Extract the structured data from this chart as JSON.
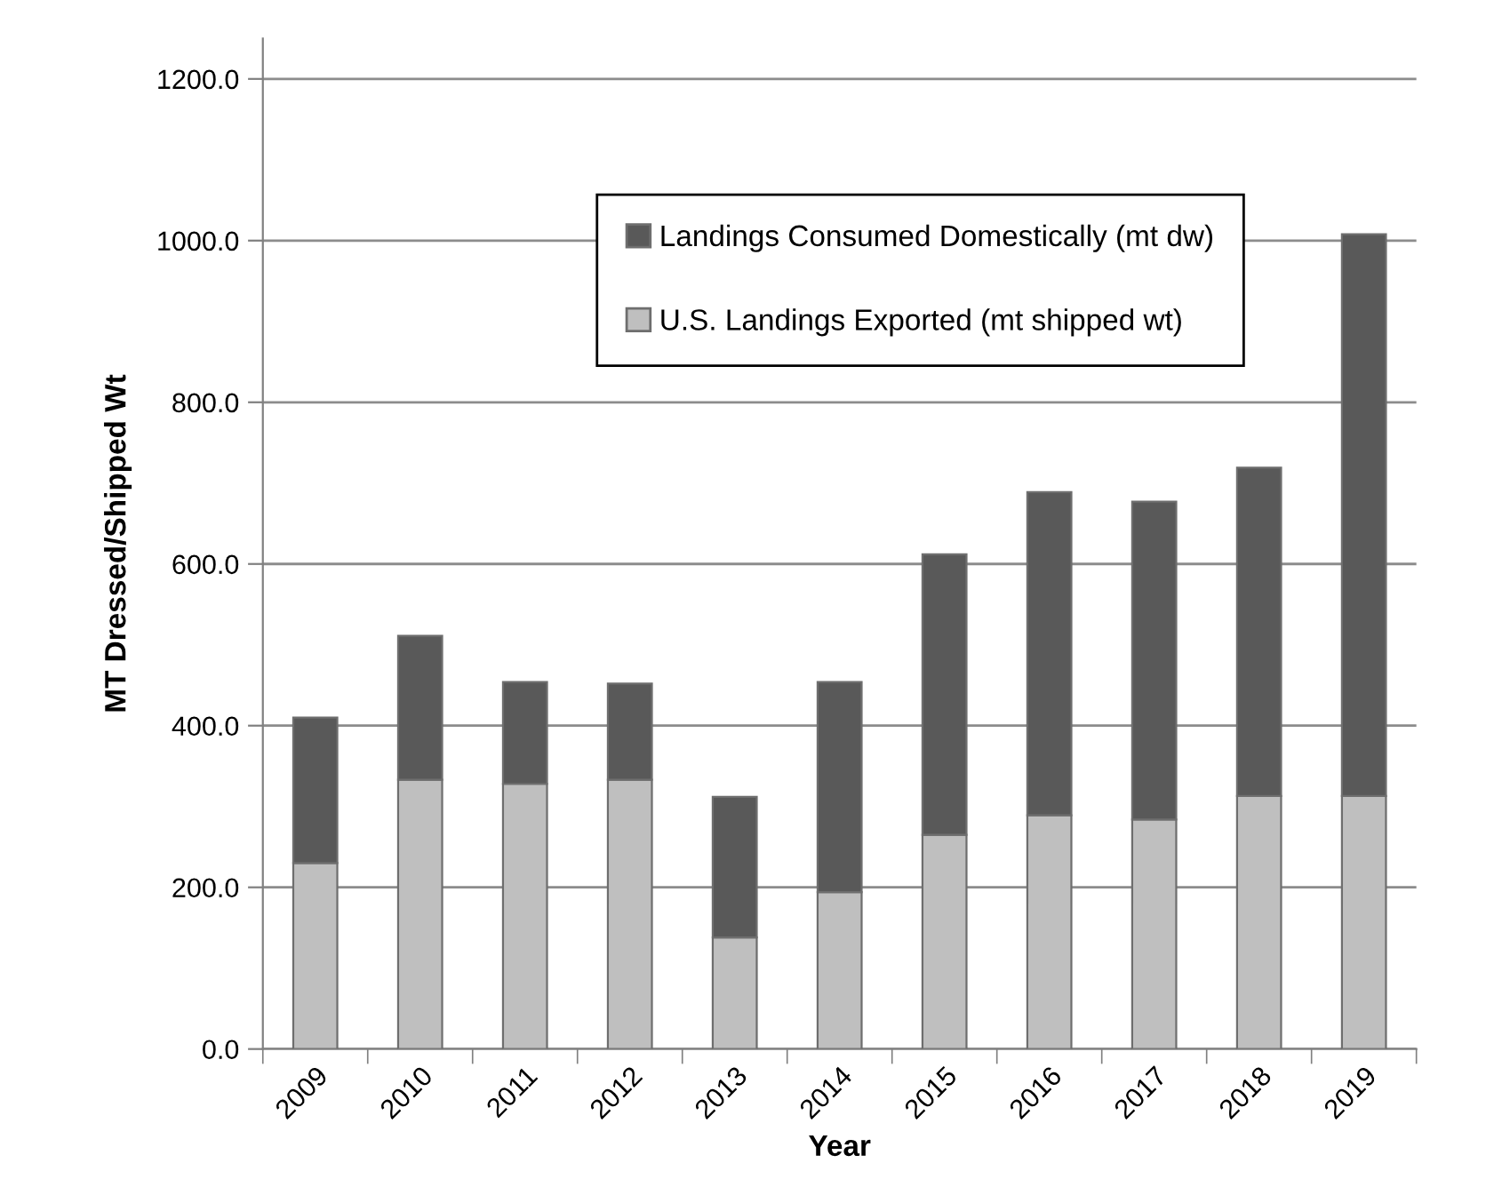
{
  "chart_data": {
    "type": "bar",
    "stacked": true,
    "xlabel": "Year",
    "ylabel": "MT Dressed/Shipped Wt",
    "categories": [
      "2009",
      "2010",
      "2011",
      "2012",
      "2013",
      "2014",
      "2015",
      "2016",
      "2017",
      "2018",
      "2019"
    ],
    "series": [
      {
        "name": "U.S. Landings Exported (mt shipped wt)",
        "color": "#bfbfbf",
        "values": [
          230,
          333,
          328,
          333,
          138,
          194,
          265,
          289,
          284,
          313,
          313
        ]
      },
      {
        "name": "Landings Consumed Domestically (mt dw)",
        "color": "#595959",
        "values": [
          180,
          178,
          126,
          119,
          174,
          260,
          347,
          400,
          393,
          406,
          695
        ]
      }
    ],
    "ylim": [
      0,
      1250
    ],
    "yticks": [
      {
        "value": 0,
        "label": "0.0"
      },
      {
        "value": 200,
        "label": "200.0"
      },
      {
        "value": 400,
        "label": "400.0"
      },
      {
        "value": 600,
        "label": "600.0"
      },
      {
        "value": 800,
        "label": "800.0"
      },
      {
        "value": 1000,
        "label": "1000.0"
      },
      {
        "value": 1200,
        "label": "1200.0"
      }
    ],
    "grid": "y",
    "legend": "top"
  }
}
